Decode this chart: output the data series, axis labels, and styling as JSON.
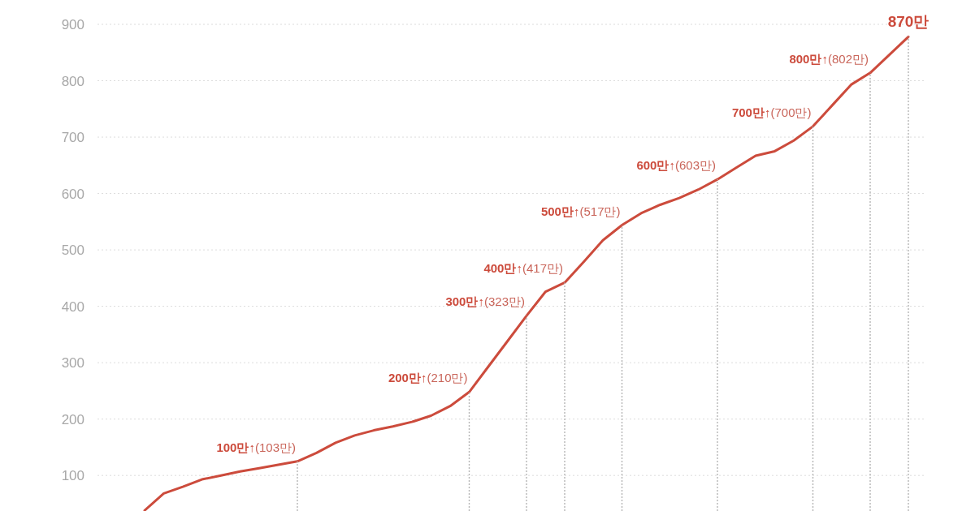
{
  "chart_data": {
    "type": "line",
    "categories": [
      null,
      null,
      null,
      null,
      null,
      null,
      null,
      null,
      null,
      null,
      null,
      null,
      null,
      null,
      null,
      null,
      null,
      null,
      null,
      null,
      null,
      null,
      null,
      null,
      null,
      null,
      null,
      null,
      null,
      null,
      null,
      null,
      null,
      null,
      null,
      null,
      null,
      null,
      null,
      null,
      null
    ],
    "series": [
      {
        "color": "#cc4b3c",
        "values": [
          38,
          68,
          80,
          93,
          100,
          107,
          113,
          119,
          125,
          140,
          158,
          171,
          180,
          187,
          195,
          206,
          223,
          248,
          293,
          338,
          383,
          426,
          442,
          479,
          517,
          544,
          565,
          580,
          592,
          607,
          625,
          646,
          667,
          675,
          694,
          719,
          756,
          793,
          814,
          846,
          878
        ]
      },
      {
        "type": "bar",
        "color": "#b5b5b5",
        "values": [
          null,
          null,
          null,
          null,
          null,
          null,
          null,
          null,
          125,
          null,
          null,
          null,
          null,
          null,
          null,
          null,
          null,
          248,
          null,
          null,
          383,
          null,
          442,
          null,
          null,
          544,
          null,
          null,
          null,
          null,
          625,
          null,
          null,
          null,
          null,
          719,
          null,
          null,
          814,
          null,
          878
        ]
      }
    ],
    "annotations": [
      "100만↑(103만)",
      "200만↑(210만)",
      "300만↑(323만)",
      "400만↑(417만)",
      "500만↑(517만)",
      "600만↑(603만)",
      "700만↑(700만)",
      "800만↑(802만)",
      "870만"
    ],
    "ylim": [
      37,
      900
    ],
    "yticks": [
      100,
      200,
      300,
      400,
      500,
      600,
      700,
      800,
      900
    ],
    "grid": "y",
    "marker": "none",
    "line_style": "solid"
  }
}
